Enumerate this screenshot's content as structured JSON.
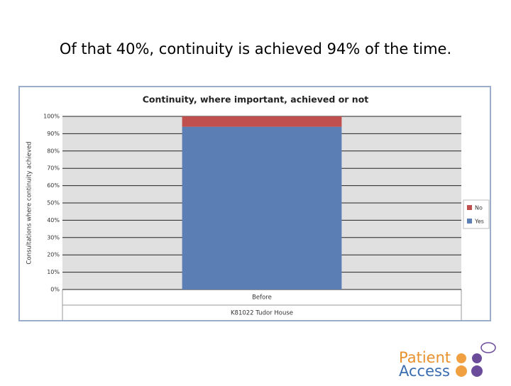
{
  "heading": "Of that 40%, continuity is achieved 94% of the time.",
  "chart_data": {
    "type": "stacked_bar",
    "title": "Continuity, where important, achieved or not",
    "y_label": "Consultations where continuity achieved",
    "categories": [
      "Before"
    ],
    "group_label": "K81022 Tudor House",
    "series": [
      {
        "name": "Yes",
        "color": "#5b7fb4",
        "values": [
          94
        ]
      },
      {
        "name": "No",
        "color": "#c0504d",
        "values": [
          6
        ]
      }
    ],
    "ylim": [
      0,
      100
    ],
    "yticks": [
      {
        "value": 0,
        "label": "0%"
      },
      {
        "value": 10,
        "label": "10%"
      },
      {
        "value": 20,
        "label": "20%"
      },
      {
        "value": 30,
        "label": "30%"
      },
      {
        "value": 40,
        "label": "40%"
      },
      {
        "value": 50,
        "label": "50%"
      },
      {
        "value": 60,
        "label": "60%"
      },
      {
        "value": 70,
        "label": "70%"
      },
      {
        "value": 80,
        "label": "80%"
      },
      {
        "value": 90,
        "label": "90%"
      },
      {
        "value": 100,
        "label": "100%"
      }
    ],
    "grid": true
  },
  "logo": {
    "line1": "Patient",
    "line2": "Access"
  }
}
